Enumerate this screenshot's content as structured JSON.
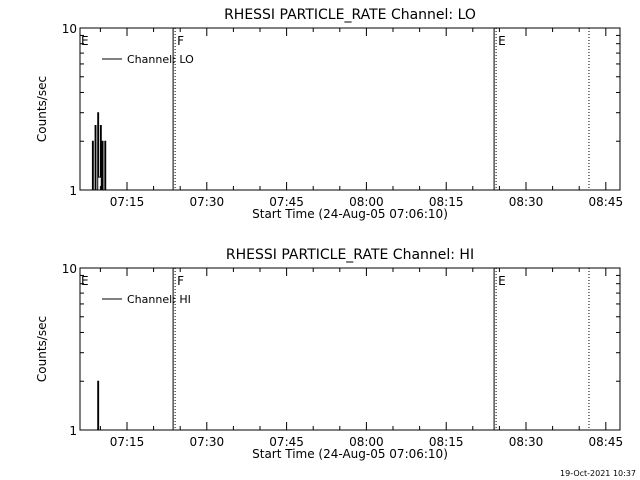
{
  "chart_data": [
    {
      "type": "line",
      "title": "RHESSI PARTICLE_RATE Channel: LO",
      "xlabel": "Start Time (24-Aug-05 07:06:10)",
      "ylabel": "Counts/sec",
      "yscale": "log",
      "ylim": [
        1,
        10
      ],
      "xlim": [
        "07:06:10",
        "08:47:40"
      ],
      "yticks": [
        "1",
        "10"
      ],
      "xticks": [
        "07:15",
        "07:30",
        "07:45",
        "08:00",
        "08:15",
        "08:30",
        "08:45"
      ],
      "legend": {
        "placement": "top-left",
        "entries": [
          "Channel: LO"
        ]
      },
      "markers": [
        {
          "label": "E",
          "time": "07:06:10",
          "style": "none"
        },
        {
          "label": "F",
          "time": "07:23:40",
          "style": "solid-dotted"
        },
        {
          "label": "E",
          "time": "08:24:00",
          "style": "solid-dotted"
        },
        {
          "label": "",
          "time": "08:41:50",
          "style": "dotted"
        }
      ],
      "series": [
        {
          "name": "Channel: LO",
          "x": [
            "07:08:10",
            "07:08:30",
            "07:08:40",
            "07:09:00",
            "07:09:10",
            "07:09:30",
            "07:09:40",
            "07:10:00",
            "07:10:10",
            "07:10:20",
            "07:10:30",
            "07:10:50",
            "07:11:00",
            "07:11:20",
            "07:11:30",
            "07:11:50"
          ],
          "y": [
            1,
            2,
            1,
            2.5,
            1,
            3,
            1.2,
            2.5,
            1,
            2,
            1,
            2,
            1,
            1,
            1,
            1
          ]
        }
      ]
    },
    {
      "type": "line",
      "title": "RHESSI PARTICLE_RATE Channel: HI",
      "xlabel": "Start Time (24-Aug-05 07:06:10)",
      "ylabel": "Counts/sec",
      "yscale": "log",
      "ylim": [
        1,
        10
      ],
      "xlim": [
        "07:06:10",
        "08:47:40"
      ],
      "yticks": [
        "1",
        "10"
      ],
      "xticks": [
        "07:15",
        "07:30",
        "07:45",
        "08:00",
        "08:15",
        "08:30",
        "08:45"
      ],
      "legend": {
        "placement": "top-left",
        "entries": [
          "Channel: HI"
        ]
      },
      "markers": [
        {
          "label": "E",
          "time": "07:06:10",
          "style": "none"
        },
        {
          "label": "F",
          "time": "07:23:40",
          "style": "solid-dotted"
        },
        {
          "label": "E",
          "time": "08:24:00",
          "style": "solid-dotted"
        },
        {
          "label": "",
          "time": "08:41:50",
          "style": "dotted"
        }
      ],
      "series": [
        {
          "name": "Channel: HI",
          "x": [
            "07:09:20",
            "07:09:30",
            "07:09:40",
            "07:09:50"
          ],
          "y": [
            1,
            2,
            1,
            1
          ]
        }
      ]
    }
  ],
  "footer": {
    "timestamp": "19-Oct-2021 10:37"
  }
}
